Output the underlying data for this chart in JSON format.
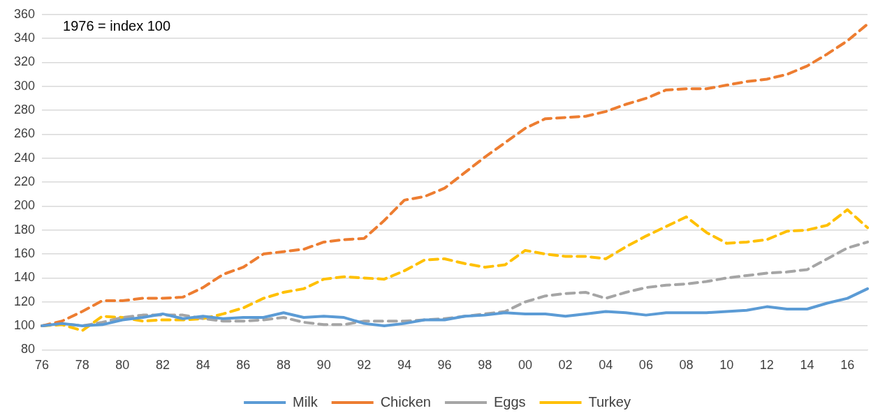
{
  "chart_data": {
    "type": "line",
    "categories": [
      "76",
      null,
      "78",
      null,
      "80",
      null,
      "82",
      null,
      "84",
      null,
      "86",
      null,
      "88",
      null,
      "90",
      null,
      "92",
      null,
      "94",
      null,
      "96",
      null,
      "98",
      null,
      "00",
      null,
      "02",
      null,
      "04",
      null,
      "06",
      null,
      "08",
      null,
      "10",
      null,
      "12",
      null,
      "14",
      null,
      "16",
      null
    ],
    "series": [
      {
        "name": "Milk",
        "color": "#5b9bd5",
        "line_style": "solid",
        "values": [
          100,
          102,
          100,
          101,
          105,
          107,
          110,
          106,
          108,
          106,
          107,
          107,
          111,
          107,
          108,
          107,
          102,
          100,
          102,
          105,
          105,
          108,
          109,
          111,
          110,
          110,
          108,
          110,
          112,
          111,
          109,
          111,
          111,
          111,
          112,
          113,
          116,
          114,
          114,
          119,
          123,
          131
        ]
      },
      {
        "name": "Chicken",
        "color": "#ed7d31",
        "line_style": "dashed",
        "values": [
          100,
          104,
          112,
          121,
          121,
          123,
          123,
          124,
          132,
          143,
          149,
          160,
          162,
          164,
          170,
          172,
          173,
          188,
          205,
          208,
          215,
          228,
          241,
          253,
          265,
          273,
          274,
          275,
          279,
          285,
          290,
          297,
          298,
          298,
          301,
          304,
          306,
          310,
          317,
          327,
          338,
          352
        ]
      },
      {
        "name": "Eggs",
        "color": "#a5a5a5",
        "line_style": "dashed",
        "values": [
          100,
          102,
          100,
          103,
          107,
          109,
          109,
          109,
          106,
          104,
          104,
          105,
          107,
          103,
          101,
          101,
          104,
          104,
          104,
          105,
          106,
          108,
          110,
          112,
          120,
          125,
          127,
          128,
          123,
          128,
          132,
          134,
          135,
          137,
          140,
          142,
          144,
          145,
          147,
          156,
          165,
          170
        ]
      },
      {
        "name": "Turkey",
        "color": "#ffc000",
        "line_style": "dashed",
        "values": [
          100,
          101,
          96,
          108,
          107,
          104,
          105,
          105,
          106,
          110,
          115,
          123,
          128,
          131,
          139,
          141,
          140,
          139,
          146,
          155,
          156,
          152,
          149,
          151,
          163,
          160,
          158,
          158,
          156,
          166,
          175,
          183,
          191,
          178,
          169,
          170,
          172,
          179,
          180,
          184,
          197,
          182
        ]
      }
    ],
    "ylim": [
      80,
      360
    ],
    "yticks": [
      80,
      100,
      120,
      140,
      160,
      180,
      200,
      220,
      240,
      260,
      280,
      300,
      320,
      340,
      360
    ],
    "grid": "y",
    "legend": "bottom",
    "marker": "none",
    "annotations": [
      "1976 = index 100"
    ]
  }
}
